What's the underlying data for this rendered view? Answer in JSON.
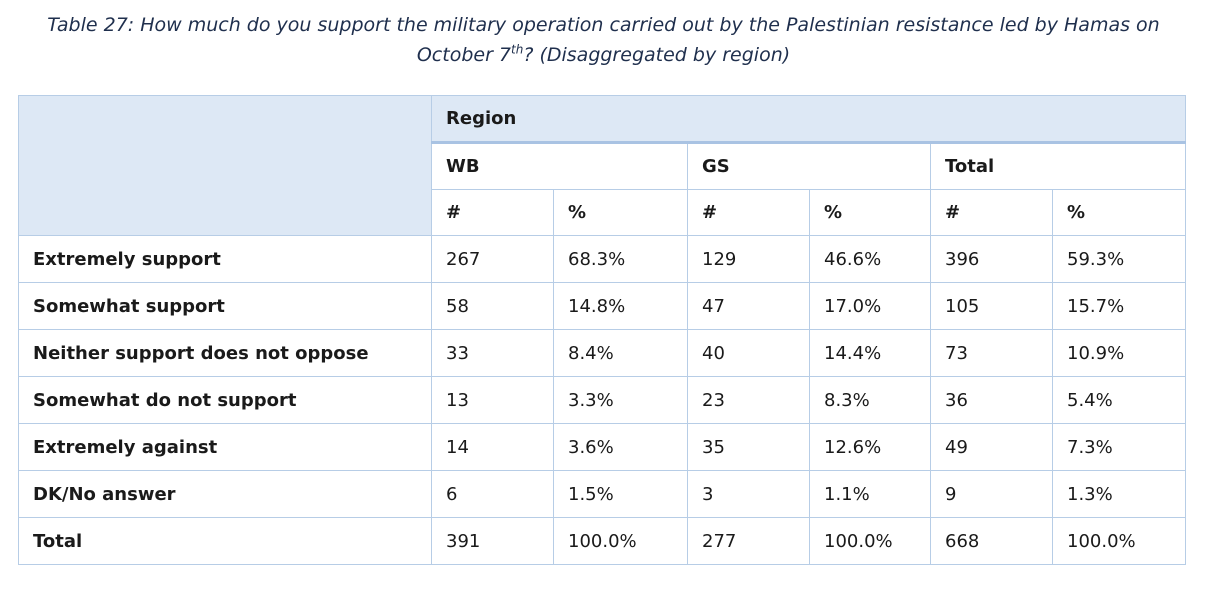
{
  "caption": {
    "line1": "Table 27: How much do you support the military operation carried out by the Palestinian resistance led by Hamas on",
    "line2_pre": "October 7",
    "line2_sup": "th",
    "line2_post": "? (Disaggregated by region)"
  },
  "table": {
    "region_label": "Region",
    "groups": [
      "WB",
      "GS",
      "Total"
    ],
    "subheaders": [
      "#",
      "%",
      "#",
      "%",
      "#",
      "%"
    ],
    "rows": [
      {
        "label": "Extremely support",
        "cells": [
          "267",
          "68.3%",
          "129",
          "46.6%",
          "396",
          "59.3%"
        ]
      },
      {
        "label": "Somewhat support",
        "cells": [
          "58",
          "14.8%",
          "47",
          "17.0%",
          "105",
          "15.7%"
        ]
      },
      {
        "label": "Neither support does not oppose",
        "cells": [
          "33",
          "8.4%",
          "40",
          "14.4%",
          "73",
          "10.9%"
        ]
      },
      {
        "label": "Somewhat do not support",
        "cells": [
          "13",
          "3.3%",
          "23",
          "8.3%",
          "36",
          "5.4%"
        ]
      },
      {
        "label": "Extremely against",
        "cells": [
          "14",
          "3.6%",
          "35",
          "12.6%",
          "49",
          "7.3%"
        ]
      },
      {
        "label": "DK/No answer",
        "cells": [
          "6",
          "1.5%",
          "3",
          "1.1%",
          "9",
          "1.3%"
        ]
      },
      {
        "label": "Total",
        "cells": [
          "391",
          "100.0%",
          "277",
          "100.0%",
          "668",
          "100.0%"
        ]
      }
    ]
  }
}
